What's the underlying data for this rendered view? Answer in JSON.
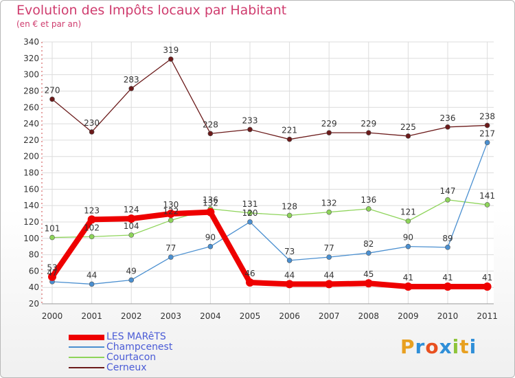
{
  "title": "Evolution des Impôts locaux par Habitant",
  "subtitle": "(en € et par an)",
  "logo": "Proxiti",
  "chart_data": {
    "type": "line",
    "categories": [
      "2000",
      "2001",
      "2002",
      "2003",
      "2004",
      "2005",
      "2006",
      "2007",
      "2008",
      "2009",
      "2010",
      "2011"
    ],
    "ylim": [
      20,
      340
    ],
    "yticks": [
      20,
      40,
      60,
      80,
      100,
      120,
      140,
      160,
      180,
      200,
      220,
      240,
      260,
      280,
      300,
      320,
      340
    ],
    "grid": true,
    "legend_position": "bottom-left",
    "series": [
      {
        "name": "LES MARêTS",
        "color": "#ee0000",
        "values": [
          53,
          123,
          124,
          130,
          132,
          46,
          44,
          44,
          45,
          41,
          41,
          41
        ]
      },
      {
        "name": "Champcenest",
        "color": "#4a8fd0",
        "values": [
          47,
          44,
          49,
          77,
          90,
          120,
          73,
          77,
          82,
          90,
          89,
          217
        ]
      },
      {
        "name": "Courtacon",
        "color": "#8ed45a",
        "values": [
          101,
          102,
          104,
          122,
          136,
          131,
          128,
          132,
          136,
          121,
          147,
          141
        ]
      },
      {
        "name": "Cerneux",
        "color": "#6b1a1a",
        "values": [
          270,
          230,
          283,
          319,
          228,
          233,
          221,
          229,
          229,
          225,
          236,
          238
        ]
      }
    ]
  }
}
